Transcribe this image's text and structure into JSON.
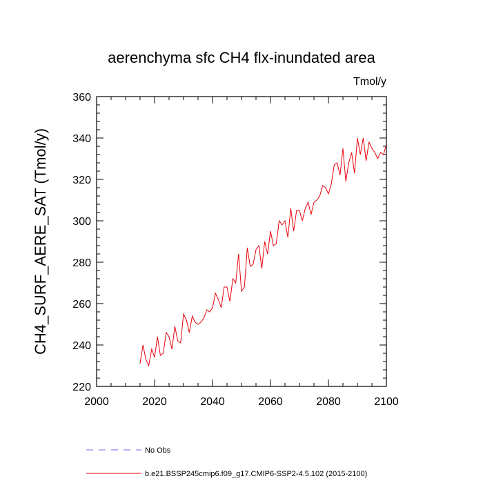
{
  "chart_data": {
    "type": "line",
    "title": "aerenchyma sfc CH4 flx-inundated area",
    "units_label": "Tmol/y",
    "ylabel": "CH4_SURF_AERE_SAT  (Tmol/y)",
    "xlabel": "",
    "xlim": [
      2000,
      2100
    ],
    "ylim": [
      220,
      360
    ],
    "xticks": [
      2000,
      2020,
      2040,
      2060,
      2080,
      2100
    ],
    "yticks": [
      220,
      240,
      260,
      280,
      300,
      320,
      340,
      360
    ],
    "grid": false,
    "legend_placement": "bottom",
    "series": [
      {
        "name": "No Obs",
        "color": "#6a6aff",
        "dashed": true,
        "x": [],
        "y": []
      },
      {
        "name": "b.e21.BSSP245cmip6.f09_g17.CMIP6-SSP2-4.5.102 (2015-2100)",
        "color": "#e8000b",
        "dashed": false,
        "x": [
          2015,
          2016,
          2017,
          2018,
          2019,
          2020,
          2021,
          2022,
          2023,
          2024,
          2025,
          2026,
          2027,
          2028,
          2029,
          2030,
          2031,
          2032,
          2033,
          2034,
          2035,
          2036,
          2037,
          2038,
          2039,
          2040,
          2041,
          2042,
          2043,
          2044,
          2045,
          2046,
          2047,
          2048,
          2049,
          2050,
          2051,
          2052,
          2053,
          2054,
          2055,
          2056,
          2057,
          2058,
          2059,
          2060,
          2061,
          2062,
          2063,
          2064,
          2065,
          2066,
          2067,
          2068,
          2069,
          2070,
          2071,
          2072,
          2073,
          2074,
          2075,
          2076,
          2077,
          2078,
          2079,
          2080,
          2081,
          2082,
          2083,
          2084,
          2085,
          2086,
          2087,
          2088,
          2089,
          2090,
          2091,
          2092,
          2093,
          2094,
          2095,
          2096,
          2097,
          2098,
          2099,
          2100
        ],
        "y": [
          231,
          240,
          233,
          230,
          238,
          234,
          244,
          235,
          236,
          246,
          244,
          238,
          249,
          242,
          241,
          255,
          252,
          246,
          254,
          251,
          250,
          251,
          253,
          257,
          256,
          258,
          265,
          262,
          258,
          268,
          268,
          261,
          272,
          270,
          284,
          266,
          268,
          287,
          278,
          279,
          286,
          288,
          277,
          290,
          284,
          295,
          288,
          289,
          300,
          298,
          300,
          292,
          306,
          295,
          305,
          305,
          300,
          306,
          309,
          303,
          309,
          310,
          312,
          317,
          316,
          313,
          318,
          327,
          328,
          322,
          335,
          319,
          328,
          333,
          323,
          340,
          332,
          340,
          329,
          338,
          335,
          333,
          330,
          333,
          332,
          337
        ]
      }
    ]
  }
}
